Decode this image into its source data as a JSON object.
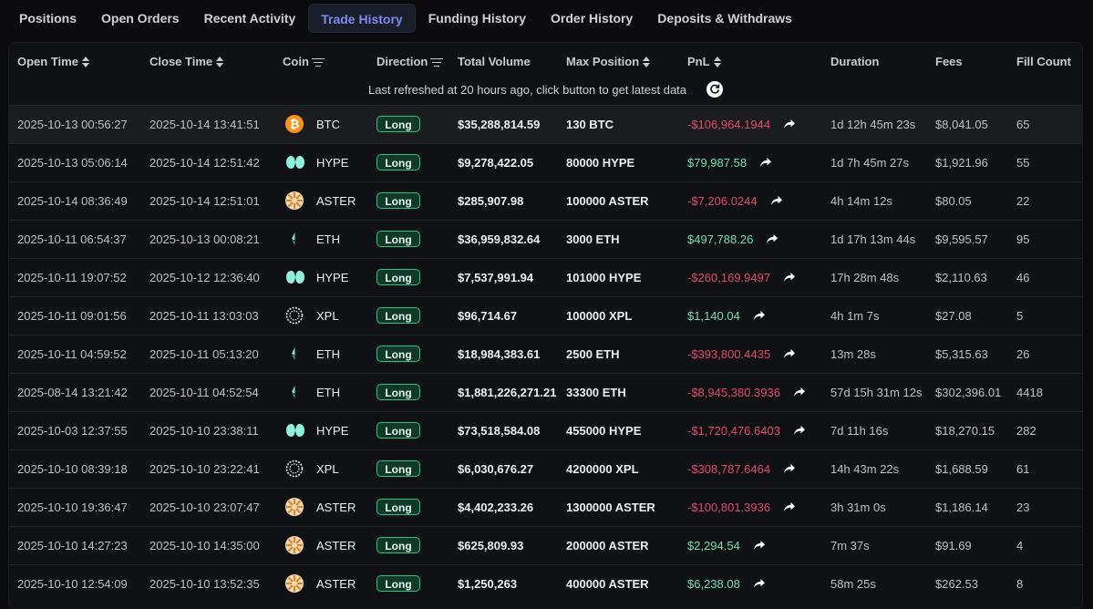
{
  "tabs": [
    "Positions",
    "Open Orders",
    "Recent Activity",
    "Trade History",
    "Funding History",
    "Order History",
    "Deposits & Withdraws"
  ],
  "active_tab": "Trade History",
  "columns": {
    "open_time": "Open Time",
    "close_time": "Close Time",
    "coin": "Coin",
    "direction": "Direction",
    "total_volume": "Total Volume",
    "max_position": "Max Position",
    "pnl": "PnL",
    "duration": "Duration",
    "fees": "Fees",
    "fill_count": "Fill Count"
  },
  "refresh_text": "Last refreshed at 20 hours ago, click button to get latest data",
  "colors": {
    "accent": "#7c8bf0",
    "positive": "#6fe0b0",
    "negative": "#e0496d",
    "long_badge": "#2ec27e"
  },
  "rows": [
    {
      "open": "2025-10-13 00:56:27",
      "close": "2025-10-14 13:41:51",
      "coin": "BTC",
      "dir": "Long",
      "volume": "$35,288,814.59",
      "maxpos": "130 BTC",
      "pnl": "-$106,964.1944",
      "duration": "1d 12h 45m 23s",
      "fees": "$8,041.05",
      "fills": "65"
    },
    {
      "open": "2025-10-13 05:06:14",
      "close": "2025-10-14 12:51:42",
      "coin": "HYPE",
      "dir": "Long",
      "volume": "$9,278,422.05",
      "maxpos": "80000 HYPE",
      "pnl": "$79,987.58",
      "duration": "1d 7h 45m 27s",
      "fees": "$1,921.96",
      "fills": "55"
    },
    {
      "open": "2025-10-14 08:36:49",
      "close": "2025-10-14 12:51:01",
      "coin": "ASTER",
      "dir": "Long",
      "volume": "$285,907.98",
      "maxpos": "100000 ASTER",
      "pnl": "-$7,206.0244",
      "duration": "4h 14m 12s",
      "fees": "$80.05",
      "fills": "22"
    },
    {
      "open": "2025-10-11 06:54:37",
      "close": "2025-10-13 00:08:21",
      "coin": "ETH",
      "dir": "Long",
      "volume": "$36,959,832.64",
      "maxpos": "3000 ETH",
      "pnl": "$497,788.26",
      "duration": "1d 17h 13m 44s",
      "fees": "$9,595.57",
      "fills": "95"
    },
    {
      "open": "2025-10-11 19:07:52",
      "close": "2025-10-12 12:36:40",
      "coin": "HYPE",
      "dir": "Long",
      "volume": "$7,537,991.94",
      "maxpos": "101000 HYPE",
      "pnl": "-$260,169.9497",
      "duration": "17h 28m 48s",
      "fees": "$2,110.63",
      "fills": "46"
    },
    {
      "open": "2025-10-11 09:01:56",
      "close": "2025-10-11 13:03:03",
      "coin": "XPL",
      "dir": "Long",
      "volume": "$96,714.67",
      "maxpos": "100000 XPL",
      "pnl": "$1,140.04",
      "duration": "4h 1m 7s",
      "fees": "$27.08",
      "fills": "5"
    },
    {
      "open": "2025-10-11 04:59:52",
      "close": "2025-10-11 05:13:20",
      "coin": "ETH",
      "dir": "Long",
      "volume": "$18,984,383.61",
      "maxpos": "2500 ETH",
      "pnl": "-$393,800.4435",
      "duration": "13m 28s",
      "fees": "$5,315.63",
      "fills": "26"
    },
    {
      "open": "2025-08-14 13:21:42",
      "close": "2025-10-11 04:52:54",
      "coin": "ETH",
      "dir": "Long",
      "volume": "$1,881,226,271.21",
      "maxpos": "33300 ETH",
      "pnl": "-$8,945,380.3936",
      "duration": "57d 15h 31m 12s",
      "fees": "$302,396.01",
      "fills": "4418"
    },
    {
      "open": "2025-10-03 12:37:55",
      "close": "2025-10-10 23:38:11",
      "coin": "HYPE",
      "dir": "Long",
      "volume": "$73,518,584.08",
      "maxpos": "455000 HYPE",
      "pnl": "-$1,720,476.6403",
      "duration": "7d 11h 16s",
      "fees": "$18,270.15",
      "fills": "282"
    },
    {
      "open": "2025-10-10 08:39:18",
      "close": "2025-10-10 23:22:41",
      "coin": "XPL",
      "dir": "Long",
      "volume": "$6,030,676.27",
      "maxpos": "4200000 XPL",
      "pnl": "-$308,787.6464",
      "duration": "14h 43m 22s",
      "fees": "$1,688.59",
      "fills": "61"
    },
    {
      "open": "2025-10-10 19:36:47",
      "close": "2025-10-10 23:07:47",
      "coin": "ASTER",
      "dir": "Long",
      "volume": "$4,402,233.26",
      "maxpos": "1300000 ASTER",
      "pnl": "-$100,801.3936",
      "duration": "3h 31m 0s",
      "fees": "$1,186.14",
      "fills": "23"
    },
    {
      "open": "2025-10-10 14:27:23",
      "close": "2025-10-10 14:35:00",
      "coin": "ASTER",
      "dir": "Long",
      "volume": "$625,809.93",
      "maxpos": "200000 ASTER",
      "pnl": "$2,294.54",
      "duration": "7m 37s",
      "fees": "$91.69",
      "fills": "4"
    },
    {
      "open": "2025-10-10 12:54:09",
      "close": "2025-10-10 13:52:35",
      "coin": "ASTER",
      "dir": "Long",
      "volume": "$1,250,263",
      "maxpos": "400000 ASTER",
      "pnl": "$6,238.08",
      "duration": "58m 25s",
      "fees": "$262.53",
      "fills": "8"
    }
  ]
}
